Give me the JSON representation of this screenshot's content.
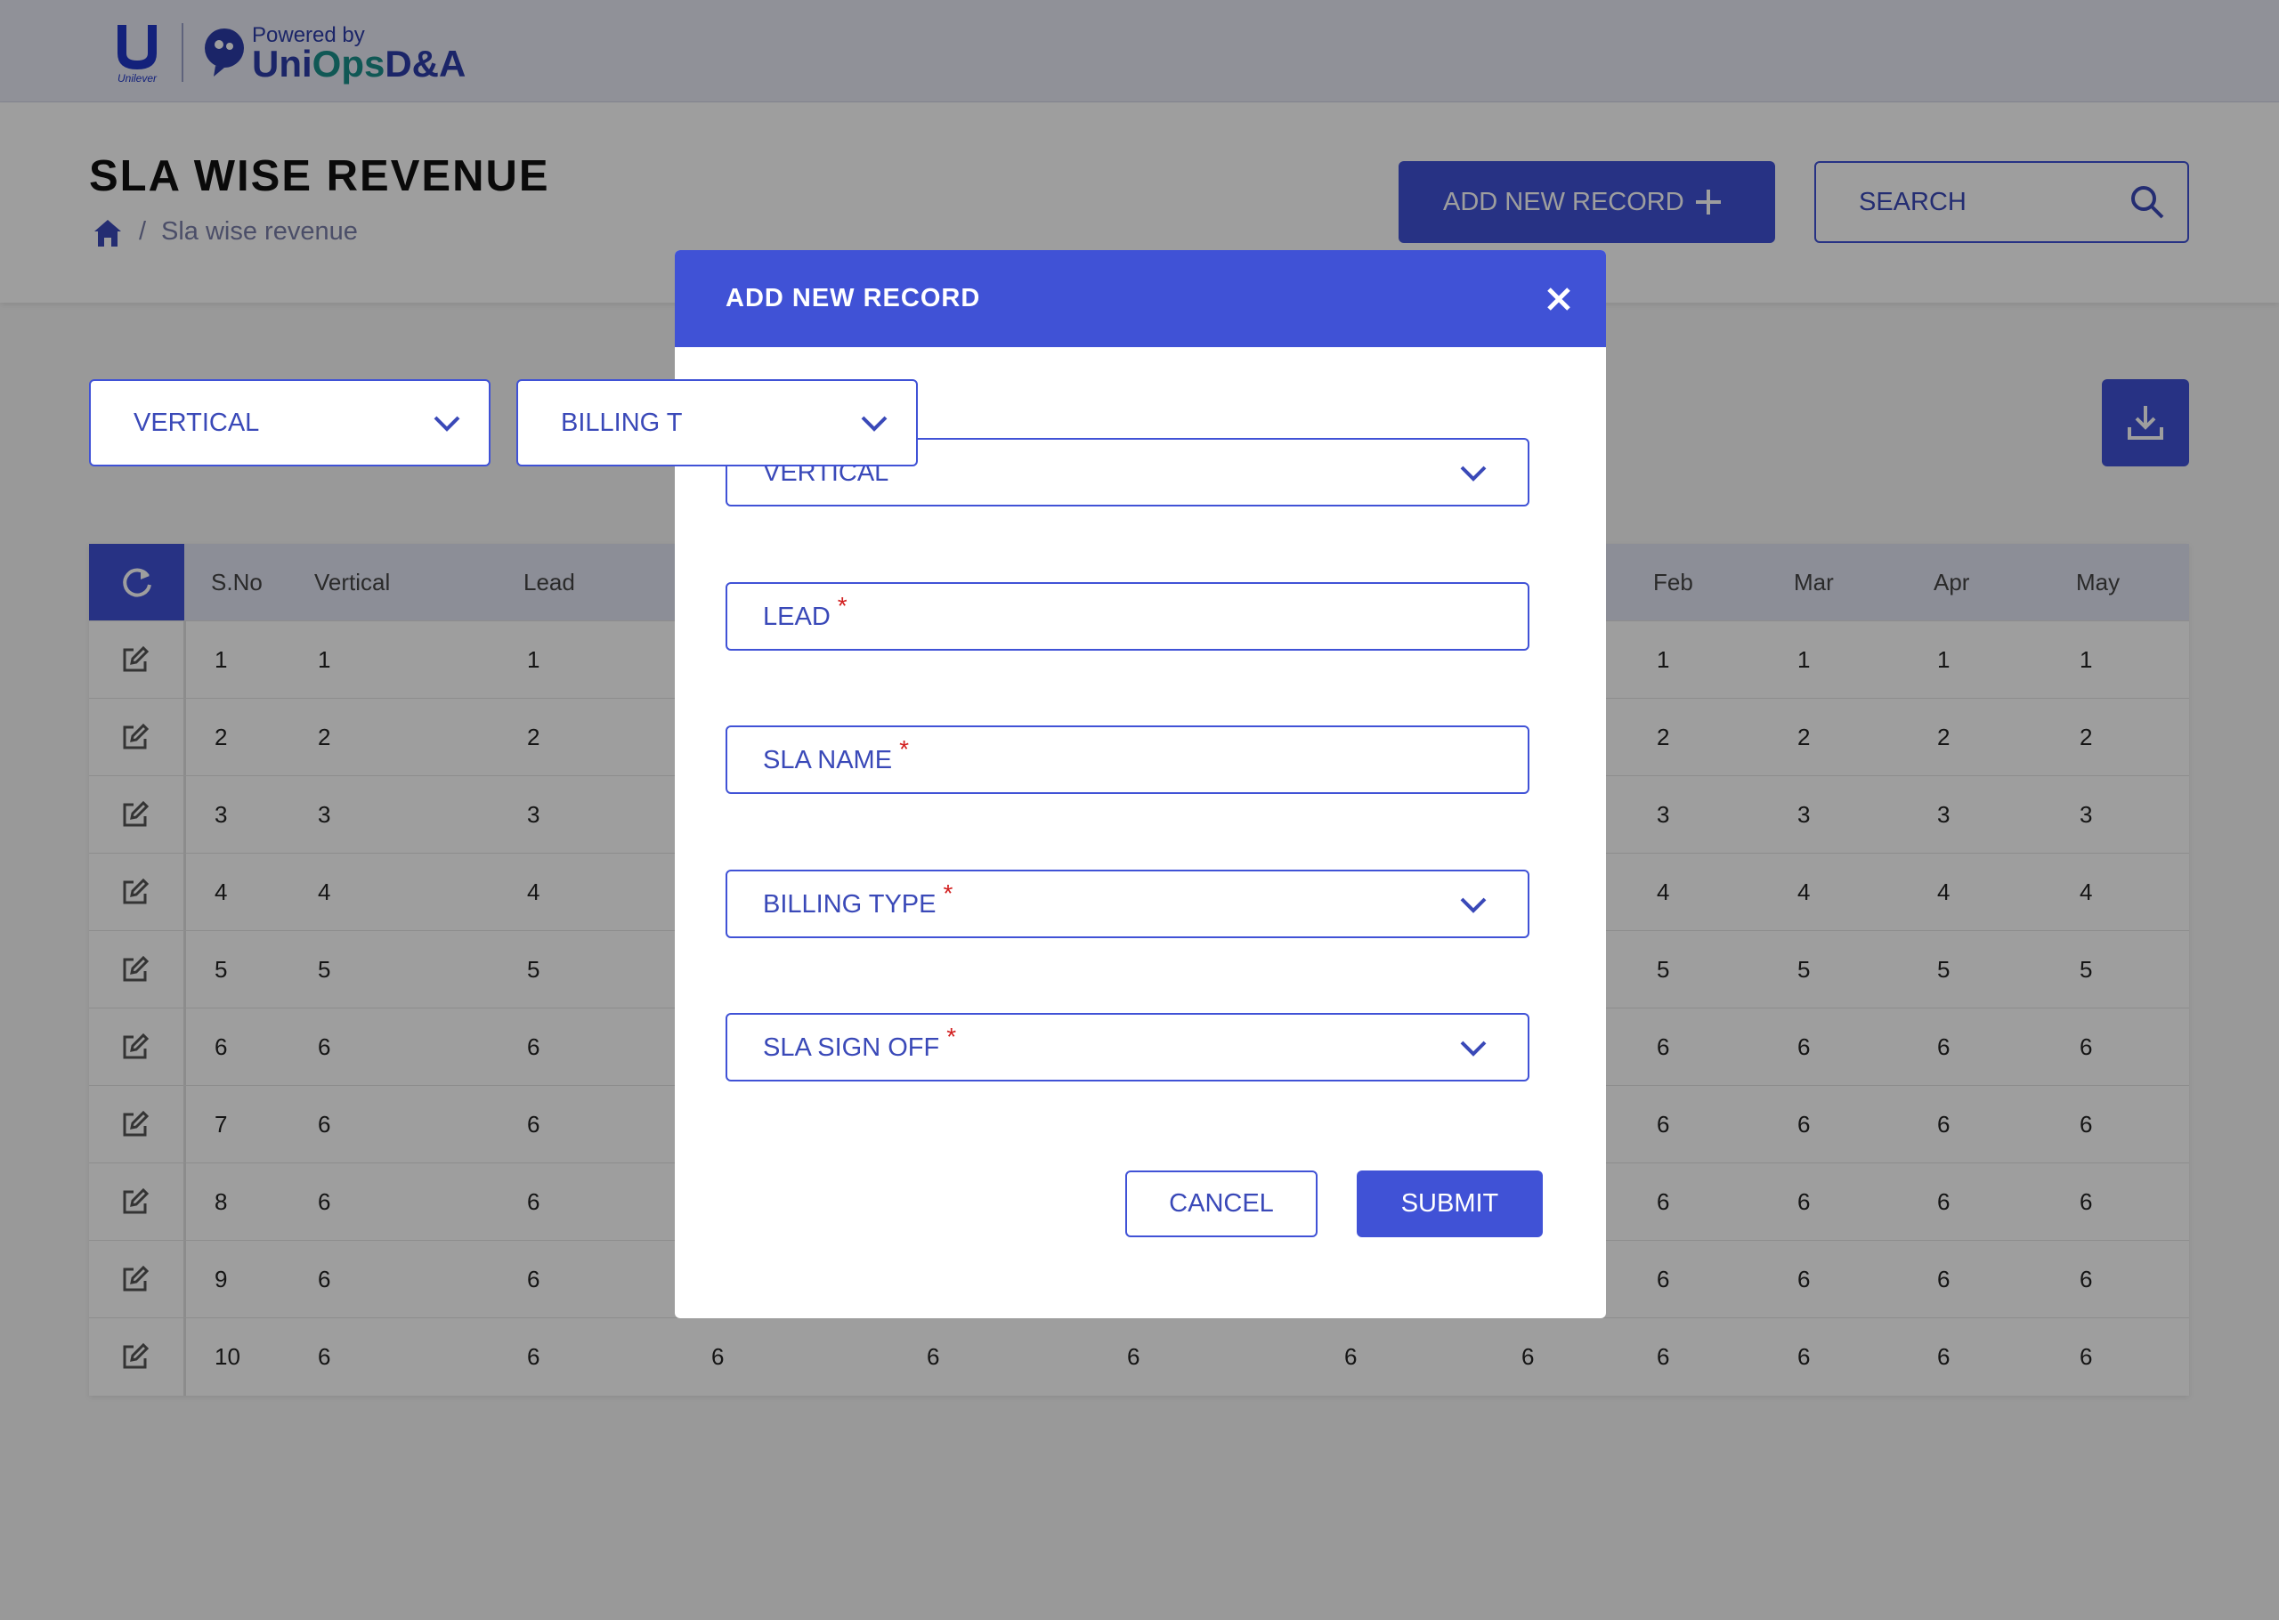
{
  "header": {
    "logo_company": "Unilever",
    "powered_by": "Powered by",
    "brand_part1": "Uni",
    "brand_part2": "Ops",
    "brand_part3": "D&A"
  },
  "page": {
    "title": "SLA WISE REVENUE",
    "breadcrumb_separator": "/",
    "breadcrumb": "Sla wise revenue",
    "add_button": "ADD NEW RECORD",
    "search_placeholder": "SEARCH"
  },
  "filters": [
    "VERTICAL",
    "BILLING T"
  ],
  "table": {
    "columns": [
      "S.No",
      "Vertical",
      "Lead",
      null,
      null,
      null,
      null,
      null,
      "Feb",
      "Mar",
      "Apr",
      "May"
    ],
    "rows": [
      [
        "1",
        "1",
        "1",
        null,
        null,
        null,
        null,
        null,
        "1",
        "1",
        "1",
        "1"
      ],
      [
        "2",
        "2",
        "2",
        null,
        null,
        null,
        null,
        null,
        "2",
        "2",
        "2",
        "2"
      ],
      [
        "3",
        "3",
        "3",
        null,
        null,
        null,
        null,
        null,
        "3",
        "3",
        "3",
        "3"
      ],
      [
        "4",
        "4",
        "4",
        null,
        null,
        null,
        null,
        null,
        "4",
        "4",
        "4",
        "4"
      ],
      [
        "5",
        "5",
        "5",
        null,
        null,
        null,
        null,
        null,
        "5",
        "5",
        "5",
        "5"
      ],
      [
        "6",
        "6",
        "6",
        null,
        null,
        null,
        null,
        null,
        "6",
        "6",
        "6",
        "6"
      ],
      [
        "7",
        "6",
        "6",
        null,
        null,
        null,
        null,
        null,
        "6",
        "6",
        "6",
        "6"
      ],
      [
        "8",
        "6",
        "6",
        null,
        null,
        null,
        null,
        null,
        "6",
        "6",
        "6",
        "6"
      ],
      [
        "9",
        "6",
        "6",
        null,
        null,
        null,
        null,
        null,
        "6",
        "6",
        "6",
        "6"
      ],
      [
        "10",
        "6",
        "6",
        "6",
        "6",
        "6",
        "6",
        "6",
        "6",
        "6",
        "6",
        "6"
      ]
    ]
  },
  "modal": {
    "title": "ADD NEW RECORD",
    "required_marker": "*",
    "fields": [
      {
        "label": "VERTICAL",
        "required": true,
        "dropdown": true
      },
      {
        "label": "LEAD",
        "required": true,
        "dropdown": false
      },
      {
        "label": "SLA NAME",
        "required": true,
        "dropdown": false
      },
      {
        "label": "BILLING TYPE",
        "required": true,
        "dropdown": true
      },
      {
        "label": "SLA SIGN OFF",
        "required": true,
        "dropdown": true
      }
    ],
    "cancel": "CANCEL",
    "submit": "SUBMIT"
  }
}
